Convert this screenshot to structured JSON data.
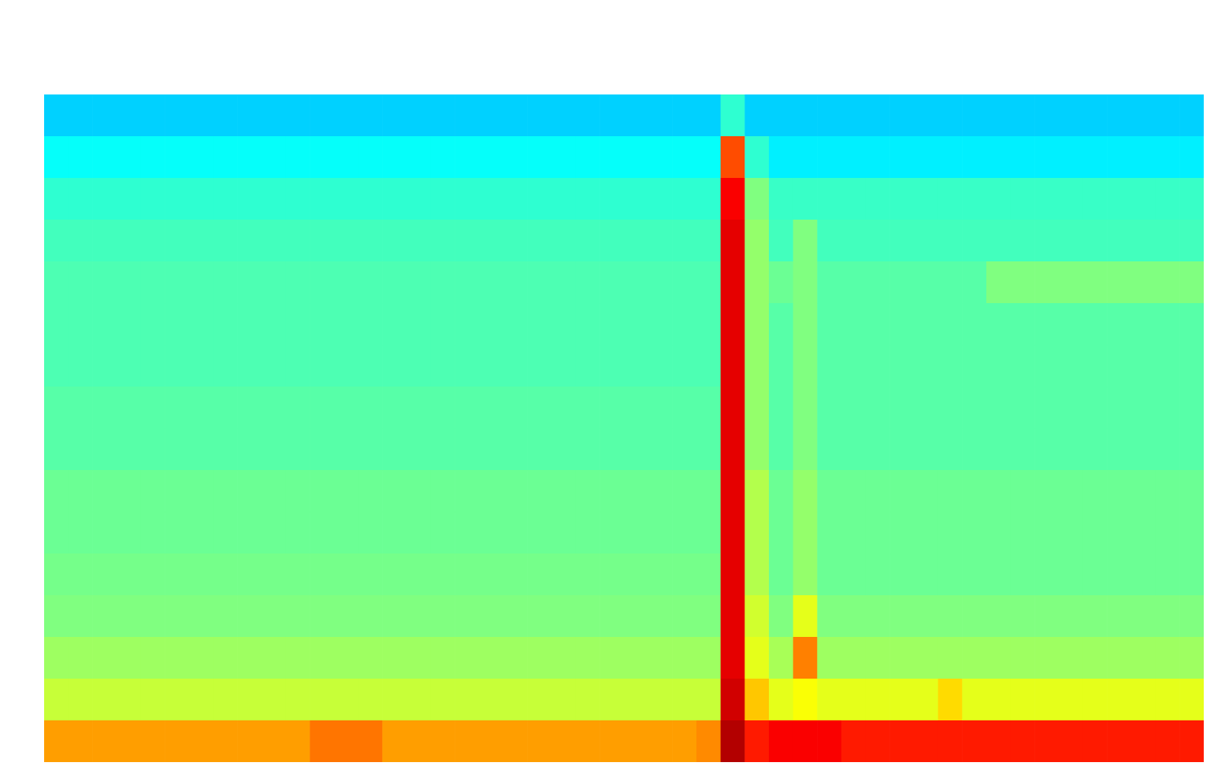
{
  "chart_data": {
    "type": "heatmap",
    "tick_labels": false,
    "cells": [
      [
        0.33,
        0.33,
        0.33,
        0.33,
        0.33,
        0.33,
        0.33,
        0.33,
        0.33,
        0.33,
        0.33,
        0.33,
        0.33,
        0.33,
        0.33,
        0.33,
        0.33,
        0.33,
        0.33,
        0.33,
        0.33,
        0.33,
        0.33,
        0.33,
        0.33,
        0.33,
        0.33,
        0.33,
        0.42,
        0.33,
        0.33,
        0.33,
        0.33,
        0.33,
        0.33,
        0.33,
        0.33,
        0.33,
        0.33,
        0.33,
        0.33,
        0.33,
        0.33,
        0.33,
        0.33,
        0.33,
        0.33,
        0.33
      ],
      [
        0.38,
        0.38,
        0.38,
        0.38,
        0.38,
        0.38,
        0.38,
        0.38,
        0.38,
        0.38,
        0.38,
        0.38,
        0.38,
        0.38,
        0.38,
        0.38,
        0.38,
        0.38,
        0.38,
        0.38,
        0.38,
        0.38,
        0.38,
        0.38,
        0.38,
        0.38,
        0.38,
        0.38,
        0.8,
        0.42,
        0.36,
        0.36,
        0.36,
        0.36,
        0.36,
        0.36,
        0.36,
        0.36,
        0.36,
        0.36,
        0.36,
        0.36,
        0.36,
        0.36,
        0.36,
        0.36,
        0.36,
        0.36
      ],
      [
        0.42,
        0.42,
        0.42,
        0.42,
        0.42,
        0.42,
        0.42,
        0.42,
        0.42,
        0.42,
        0.42,
        0.42,
        0.42,
        0.42,
        0.42,
        0.42,
        0.42,
        0.42,
        0.42,
        0.42,
        0.42,
        0.42,
        0.42,
        0.42,
        0.42,
        0.42,
        0.42,
        0.42,
        0.88,
        0.5,
        0.43,
        0.43,
        0.43,
        0.43,
        0.43,
        0.43,
        0.43,
        0.43,
        0.43,
        0.43,
        0.43,
        0.43,
        0.43,
        0.43,
        0.43,
        0.43,
        0.43,
        0.43
      ],
      [
        0.44,
        0.44,
        0.44,
        0.44,
        0.44,
        0.44,
        0.44,
        0.44,
        0.44,
        0.44,
        0.44,
        0.44,
        0.44,
        0.44,
        0.44,
        0.44,
        0.44,
        0.44,
        0.44,
        0.44,
        0.44,
        0.44,
        0.44,
        0.44,
        0.44,
        0.44,
        0.44,
        0.44,
        0.9,
        0.52,
        0.44,
        0.5,
        0.44,
        0.44,
        0.44,
        0.44,
        0.44,
        0.44,
        0.44,
        0.44,
        0.44,
        0.44,
        0.44,
        0.44,
        0.44,
        0.44,
        0.44,
        0.44
      ],
      [
        0.45,
        0.45,
        0.45,
        0.45,
        0.45,
        0.45,
        0.45,
        0.45,
        0.45,
        0.45,
        0.45,
        0.45,
        0.45,
        0.45,
        0.45,
        0.45,
        0.45,
        0.45,
        0.45,
        0.45,
        0.45,
        0.45,
        0.45,
        0.45,
        0.45,
        0.45,
        0.45,
        0.45,
        0.9,
        0.52,
        0.48,
        0.5,
        0.46,
        0.46,
        0.46,
        0.46,
        0.46,
        0.46,
        0.46,
        0.5,
        0.5,
        0.5,
        0.5,
        0.5,
        0.5,
        0.5,
        0.5,
        0.5
      ],
      [
        0.45,
        0.45,
        0.45,
        0.45,
        0.45,
        0.45,
        0.45,
        0.45,
        0.45,
        0.45,
        0.45,
        0.45,
        0.45,
        0.45,
        0.45,
        0.45,
        0.45,
        0.45,
        0.45,
        0.45,
        0.45,
        0.45,
        0.45,
        0.45,
        0.45,
        0.45,
        0.45,
        0.45,
        0.9,
        0.52,
        0.46,
        0.5,
        0.46,
        0.46,
        0.46,
        0.46,
        0.46,
        0.46,
        0.46,
        0.46,
        0.46,
        0.46,
        0.46,
        0.46,
        0.46,
        0.46,
        0.46,
        0.46
      ],
      [
        0.45,
        0.45,
        0.45,
        0.45,
        0.45,
        0.45,
        0.45,
        0.45,
        0.45,
        0.45,
        0.45,
        0.45,
        0.45,
        0.45,
        0.45,
        0.45,
        0.45,
        0.45,
        0.45,
        0.45,
        0.45,
        0.45,
        0.45,
        0.45,
        0.45,
        0.45,
        0.45,
        0.45,
        0.9,
        0.52,
        0.46,
        0.5,
        0.46,
        0.46,
        0.46,
        0.46,
        0.46,
        0.46,
        0.46,
        0.46,
        0.46,
        0.46,
        0.46,
        0.46,
        0.46,
        0.46,
        0.46,
        0.46
      ],
      [
        0.46,
        0.46,
        0.46,
        0.46,
        0.46,
        0.46,
        0.46,
        0.46,
        0.46,
        0.46,
        0.46,
        0.46,
        0.46,
        0.46,
        0.46,
        0.46,
        0.46,
        0.46,
        0.46,
        0.46,
        0.46,
        0.46,
        0.46,
        0.46,
        0.46,
        0.46,
        0.46,
        0.46,
        0.9,
        0.52,
        0.46,
        0.5,
        0.46,
        0.46,
        0.46,
        0.46,
        0.46,
        0.46,
        0.46,
        0.46,
        0.46,
        0.46,
        0.46,
        0.46,
        0.46,
        0.46,
        0.46,
        0.46
      ],
      [
        0.46,
        0.46,
        0.46,
        0.46,
        0.46,
        0.46,
        0.46,
        0.46,
        0.46,
        0.46,
        0.46,
        0.46,
        0.46,
        0.46,
        0.46,
        0.46,
        0.46,
        0.46,
        0.46,
        0.46,
        0.46,
        0.46,
        0.46,
        0.46,
        0.46,
        0.46,
        0.46,
        0.46,
        0.9,
        0.52,
        0.46,
        0.5,
        0.46,
        0.46,
        0.46,
        0.46,
        0.46,
        0.46,
        0.46,
        0.46,
        0.46,
        0.46,
        0.46,
        0.46,
        0.46,
        0.46,
        0.46,
        0.46
      ],
      [
        0.48,
        0.48,
        0.48,
        0.48,
        0.48,
        0.48,
        0.48,
        0.48,
        0.48,
        0.48,
        0.48,
        0.48,
        0.48,
        0.48,
        0.48,
        0.48,
        0.48,
        0.48,
        0.48,
        0.48,
        0.48,
        0.48,
        0.48,
        0.48,
        0.48,
        0.48,
        0.48,
        0.48,
        0.9,
        0.55,
        0.48,
        0.52,
        0.48,
        0.48,
        0.48,
        0.48,
        0.48,
        0.48,
        0.48,
        0.48,
        0.48,
        0.48,
        0.48,
        0.48,
        0.48,
        0.48,
        0.48,
        0.48
      ],
      [
        0.48,
        0.48,
        0.48,
        0.48,
        0.48,
        0.48,
        0.48,
        0.48,
        0.48,
        0.48,
        0.48,
        0.48,
        0.48,
        0.48,
        0.48,
        0.48,
        0.48,
        0.48,
        0.48,
        0.48,
        0.48,
        0.48,
        0.48,
        0.48,
        0.48,
        0.48,
        0.48,
        0.48,
        0.9,
        0.55,
        0.48,
        0.52,
        0.48,
        0.48,
        0.48,
        0.48,
        0.48,
        0.48,
        0.48,
        0.48,
        0.48,
        0.48,
        0.48,
        0.48,
        0.48,
        0.48,
        0.48,
        0.48
      ],
      [
        0.49,
        0.49,
        0.49,
        0.49,
        0.49,
        0.49,
        0.49,
        0.49,
        0.49,
        0.49,
        0.49,
        0.49,
        0.49,
        0.49,
        0.49,
        0.49,
        0.49,
        0.49,
        0.49,
        0.49,
        0.49,
        0.49,
        0.49,
        0.49,
        0.49,
        0.49,
        0.49,
        0.49,
        0.9,
        0.55,
        0.48,
        0.52,
        0.48,
        0.48,
        0.48,
        0.48,
        0.48,
        0.48,
        0.48,
        0.48,
        0.48,
        0.48,
        0.48,
        0.48,
        0.48,
        0.48,
        0.48,
        0.48
      ],
      [
        0.5,
        0.5,
        0.5,
        0.5,
        0.5,
        0.5,
        0.5,
        0.5,
        0.5,
        0.5,
        0.5,
        0.5,
        0.5,
        0.5,
        0.5,
        0.5,
        0.5,
        0.5,
        0.5,
        0.5,
        0.5,
        0.5,
        0.5,
        0.5,
        0.5,
        0.5,
        0.5,
        0.5,
        0.9,
        0.58,
        0.5,
        0.6,
        0.5,
        0.5,
        0.5,
        0.5,
        0.5,
        0.5,
        0.5,
        0.5,
        0.5,
        0.5,
        0.5,
        0.5,
        0.5,
        0.5,
        0.5,
        0.5
      ],
      [
        0.53,
        0.53,
        0.53,
        0.53,
        0.53,
        0.53,
        0.53,
        0.53,
        0.53,
        0.53,
        0.53,
        0.53,
        0.53,
        0.53,
        0.53,
        0.53,
        0.53,
        0.53,
        0.53,
        0.53,
        0.53,
        0.53,
        0.53,
        0.53,
        0.53,
        0.53,
        0.53,
        0.53,
        0.9,
        0.6,
        0.54,
        0.75,
        0.53,
        0.53,
        0.53,
        0.53,
        0.53,
        0.53,
        0.53,
        0.53,
        0.53,
        0.53,
        0.53,
        0.53,
        0.53,
        0.53,
        0.53,
        0.53
      ],
      [
        0.57,
        0.57,
        0.57,
        0.57,
        0.57,
        0.57,
        0.57,
        0.57,
        0.57,
        0.57,
        0.57,
        0.57,
        0.57,
        0.57,
        0.57,
        0.57,
        0.57,
        0.57,
        0.57,
        0.57,
        0.57,
        0.57,
        0.57,
        0.57,
        0.57,
        0.57,
        0.57,
        0.57,
        0.92,
        0.68,
        0.6,
        0.62,
        0.6,
        0.6,
        0.6,
        0.6,
        0.6,
        0.66,
        0.6,
        0.6,
        0.6,
        0.6,
        0.6,
        0.6,
        0.6,
        0.6,
        0.6,
        0.6
      ],
      [
        0.72,
        0.72,
        0.72,
        0.72,
        0.72,
        0.72,
        0.72,
        0.72,
        0.72,
        0.72,
        0.72,
        0.76,
        0.76,
        0.76,
        0.72,
        0.72,
        0.72,
        0.72,
        0.72,
        0.72,
        0.72,
        0.72,
        0.72,
        0.72,
        0.72,
        0.72,
        0.72,
        0.74,
        0.95,
        0.85,
        0.88,
        0.88,
        0.88,
        0.85,
        0.85,
        0.85,
        0.85,
        0.85,
        0.85,
        0.85,
        0.85,
        0.85,
        0.85,
        0.85,
        0.85,
        0.85,
        0.85,
        0.85
      ]
    ]
  }
}
